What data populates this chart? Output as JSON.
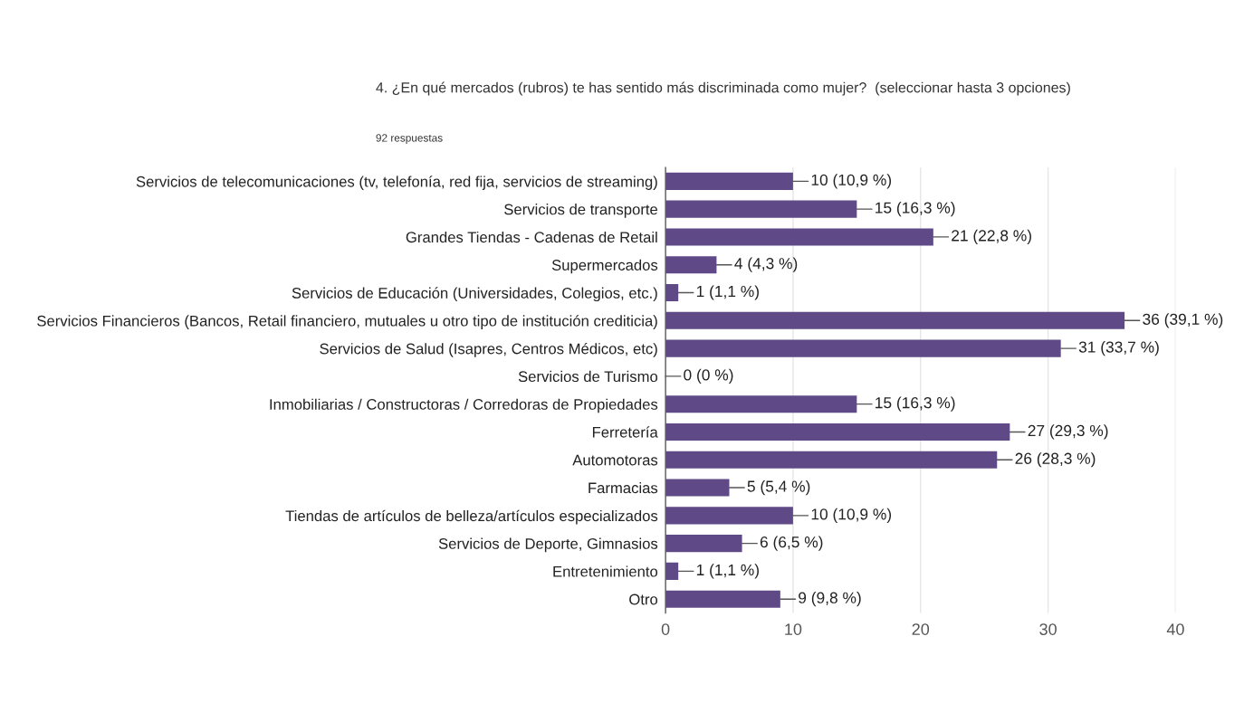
{
  "chart_data": {
    "type": "bar",
    "orientation": "horizontal",
    "title": "4. ¿En qué mercados (rubros) te has sentido más discriminada como mujer?  (seleccionar hasta 3 opciones)",
    "subtitle": "92 respuestas",
    "categories": [
      "Servicios de telecomunicaciones (tv, telefonía, red fija, servicios de streaming)",
      "Servicios de transporte",
      "Grandes Tiendas - Cadenas de Retail",
      "Supermercados",
      "Servicios de Educación (Universidades, Colegios, etc.)",
      "Servicios Financieros (Bancos, Retail financiero, mutuales u otro tipo de institución crediticia)",
      "Servicios de Salud (Isapres, Centros Médicos, etc)",
      "Servicios de Turismo",
      "Inmobiliarias / Constructoras / Corredoras de Propiedades",
      "Ferretería",
      "Automotoras",
      "Farmacias",
      "Tiendas de artículos de belleza/artículos especializados",
      "Servicios de Deporte, Gimnasios",
      "Entretenimiento",
      "Otro"
    ],
    "values": [
      10,
      15,
      21,
      4,
      1,
      36,
      31,
      0,
      15,
      27,
      26,
      5,
      10,
      6,
      1,
      9
    ],
    "value_labels": [
      "10 (10,9 %)",
      "15 (16,3 %)",
      "21 (22,8 %)",
      "4 (4,3 %)",
      "1 (1,1 %)",
      "36 (39,1 %)",
      "31 (33,7 %)",
      "0 (0 %)",
      "15 (16,3 %)",
      "27 (29,3 %)",
      "26 (28,3 %)",
      "5 (5,4 %)",
      "10 (10,9 %)",
      "6 (6,5 %)",
      "1 (1,1 %)",
      "9 (9,8 %)"
    ],
    "color": "#5f4a87",
    "xlim": [
      0,
      40
    ],
    "xticks": [
      0,
      10,
      20,
      30,
      40
    ],
    "grid": "x"
  }
}
